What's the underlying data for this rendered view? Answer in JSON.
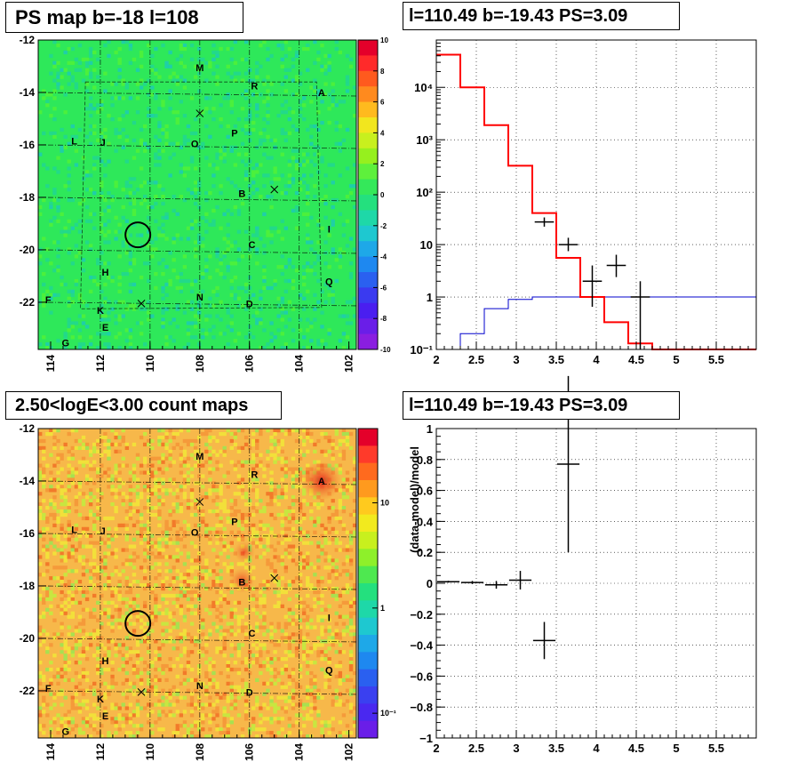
{
  "panels": {
    "ps_map_title": "PS map b=-18 l=108",
    "count_map_title": "2.50<logE<3.00 count maps",
    "spectrum_title": "l=110.49 b=-19.43 PS=3.09",
    "residual_title": "l=110.49 b=-19.43 PS=3.09"
  },
  "colors": {
    "ps_map_bg": "#2ee85a",
    "count_map_bg": "#f7b84a",
    "data": "#000000",
    "model": "#ff0000",
    "background_model": "#0000cc"
  },
  "chart_data": [
    {
      "type": "heatmap",
      "name": "PS map",
      "title": "PS map b=-18 l=108",
      "xlim": [
        114.5,
        101.7
      ],
      "ylim": [
        -23.8,
        -12.0
      ],
      "x_ticks": [
        "114",
        "112",
        "110",
        "108",
        "106",
        "104",
        "102"
      ],
      "y_ticks": [
        "-12",
        "-14",
        "-16",
        "-18",
        "-20",
        "-22"
      ],
      "colorbar": {
        "min": -10,
        "max": 10,
        "ticks": [
          "10",
          "8",
          "6",
          "4",
          "2",
          "0",
          "-2",
          "-4",
          "-6",
          "-8",
          "-10"
        ]
      },
      "sources": [
        {
          "label": "M",
          "l": 108.0,
          "b": -13.05
        },
        {
          "label": "R",
          "l": 105.8,
          "b": -13.75
        },
        {
          "label": "A",
          "l": 103.1,
          "b": -14.0
        },
        {
          "label": "P",
          "l": 106.6,
          "b": -15.55
        },
        {
          "label": "L",
          "l": 113.05,
          "b": -15.85
        },
        {
          "label": "J",
          "l": 111.9,
          "b": -15.9
        },
        {
          "label": "O",
          "l": 108.2,
          "b": -15.95
        },
        {
          "label": "B",
          "l": 106.3,
          "b": -17.85
        },
        {
          "label": "I",
          "l": 102.8,
          "b": -19.2
        },
        {
          "label": "C",
          "l": 105.9,
          "b": -19.8
        },
        {
          "label": "H",
          "l": 111.8,
          "b": -20.85
        },
        {
          "label": "Q",
          "l": 102.8,
          "b": -21.2
        },
        {
          "label": "F",
          "l": 114.1,
          "b": -21.9
        },
        {
          "label": "N",
          "l": 108.0,
          "b": -21.8
        },
        {
          "label": "D",
          "l": 106.0,
          "b": -22.05
        },
        {
          "label": "K",
          "l": 112.0,
          "b": -22.3
        },
        {
          "label": "E",
          "l": 111.8,
          "b": -22.95
        },
        {
          "label": "G",
          "l": 113.4,
          "b": -23.55
        }
      ],
      "crosses": [
        {
          "l": 108.0,
          "b": -14.8
        },
        {
          "l": 105.0,
          "b": -17.7
        },
        {
          "l": 110.35,
          "b": -22.05
        }
      ],
      "circle": {
        "l": 110.49,
        "b": -19.43
      }
    },
    {
      "type": "heatmap",
      "name": "count maps",
      "title": "2.50<logE<3.00 count maps",
      "xlim": [
        114.5,
        101.7
      ],
      "ylim": [
        -23.8,
        -12.0
      ],
      "x_ticks": [
        "114",
        "112",
        "110",
        "108",
        "106",
        "104",
        "102"
      ],
      "y_ticks": [
        "-12",
        "-14",
        "-16",
        "-18",
        "-20",
        "-22"
      ],
      "colorbar": {
        "scale": "log",
        "ticks": [
          "10",
          "1",
          "10⁻¹"
        ]
      },
      "sources": [
        {
          "label": "M",
          "l": 108.0,
          "b": -13.05
        },
        {
          "label": "R",
          "l": 105.8,
          "b": -13.75
        },
        {
          "label": "A",
          "l": 103.1,
          "b": -14.0
        },
        {
          "label": "P",
          "l": 106.6,
          "b": -15.55
        },
        {
          "label": "L",
          "l": 113.05,
          "b": -15.85
        },
        {
          "label": "J",
          "l": 111.9,
          "b": -15.9
        },
        {
          "label": "O",
          "l": 108.2,
          "b": -15.95
        },
        {
          "label": "B",
          "l": 106.3,
          "b": -17.85
        },
        {
          "label": "I",
          "l": 102.8,
          "b": -19.2
        },
        {
          "label": "C",
          "l": 105.9,
          "b": -19.8
        },
        {
          "label": "H",
          "l": 111.8,
          "b": -20.85
        },
        {
          "label": "Q",
          "l": 102.8,
          "b": -21.2
        },
        {
          "label": "F",
          "l": 114.1,
          "b": -21.9
        },
        {
          "label": "N",
          "l": 108.0,
          "b": -21.8
        },
        {
          "label": "D",
          "l": 106.0,
          "b": -22.05
        },
        {
          "label": "K",
          "l": 112.0,
          "b": -22.3
        },
        {
          "label": "E",
          "l": 111.8,
          "b": -22.95
        },
        {
          "label": "G",
          "l": 113.4,
          "b": -23.55
        }
      ],
      "crosses": [
        {
          "l": 108.0,
          "b": -14.8
        },
        {
          "l": 105.0,
          "b": -17.7
        },
        {
          "l": 110.35,
          "b": -22.05
        }
      ],
      "circle": {
        "l": 110.49,
        "b": -19.43
      }
    },
    {
      "type": "line",
      "title": "l=110.49 b=-19.43 PS=3.09",
      "yscale": "log",
      "xlim": [
        2,
        6
      ],
      "ylim": [
        0.1,
        80000
      ],
      "x_ticks": [
        "2",
        "2.5",
        "3",
        "3.5",
        "4",
        "4.5",
        "5",
        "5.5"
      ],
      "y_ticks": [
        "10⁻¹",
        "1",
        "10",
        "10²",
        "10³",
        "10⁴"
      ],
      "bin_edges": [
        2.0,
        2.3,
        2.6,
        2.9,
        3.2,
        3.5,
        3.8,
        4.1,
        4.4,
        4.7,
        5.0,
        5.3,
        5.6,
        5.9,
        6.0
      ],
      "series": [
        {
          "role": "model",
          "values": [
            42000,
            10000,
            1900,
            320,
            40,
            5.6,
            1.0,
            0.33,
            0.13,
            0.1,
            0.1,
            0.1,
            0.1,
            0.1
          ]
        },
        {
          "role": "background",
          "values": [
            0.1,
            0.2,
            0.6,
            0.9,
            1.0,
            1.0,
            1.0,
            1.0,
            1.0,
            1.0,
            1.0,
            1.0,
            1.0,
            1.0
          ]
        }
      ],
      "data_points": [
        {
          "x": 3.35,
          "xerr": 0.12,
          "y": 27,
          "ylo": 22,
          "yhi": 33
        },
        {
          "x": 3.65,
          "xerr": 0.12,
          "y": 10,
          "ylo": 7.5,
          "yhi": 13.5
        },
        {
          "x": 3.95,
          "xerr": 0.12,
          "y": 2.0,
          "ylo": 0.65,
          "yhi": 4.0
        },
        {
          "x": 4.25,
          "xerr": 0.12,
          "y": 4.0,
          "ylo": 2.4,
          "yhi": 6.4
        },
        {
          "x": 4.55,
          "xerr": 0.12,
          "y": 1.0,
          "ylo": 0.1,
          "yhi": 2.0
        }
      ]
    },
    {
      "type": "scatter",
      "title": "l=110.49 b=-19.43 PS=3.09",
      "ylabel": "(data-model)/model",
      "xlim": [
        2,
        6
      ],
      "ylim": [
        -1,
        1
      ],
      "x_ticks": [
        "2",
        "2.5",
        "3",
        "3.5",
        "4",
        "4.5",
        "5",
        "5.5"
      ],
      "y_ticks": [
        "1",
        "0.8",
        "0.6",
        "0.4",
        "0.2",
        "0",
        "−0.2",
        "−0.4",
        "−0.6",
        "−0.8",
        "−1"
      ],
      "data_points": [
        {
          "x": 2.15,
          "xerr": 0.14,
          "y": 0.01,
          "yerr": 0.006
        },
        {
          "x": 2.45,
          "xerr": 0.14,
          "y": 0.005,
          "yerr": 0.01
        },
        {
          "x": 2.75,
          "xerr": 0.14,
          "y": -0.01,
          "yerr": 0.025
        },
        {
          "x": 3.05,
          "xerr": 0.14,
          "y": 0.02,
          "yerr": 0.06
        },
        {
          "x": 3.35,
          "xerr": 0.14,
          "y": -0.37,
          "yerr": 0.12
        },
        {
          "x": 3.65,
          "xerr": 0.14,
          "y": 0.77,
          "yerr": 0.57
        }
      ]
    }
  ]
}
